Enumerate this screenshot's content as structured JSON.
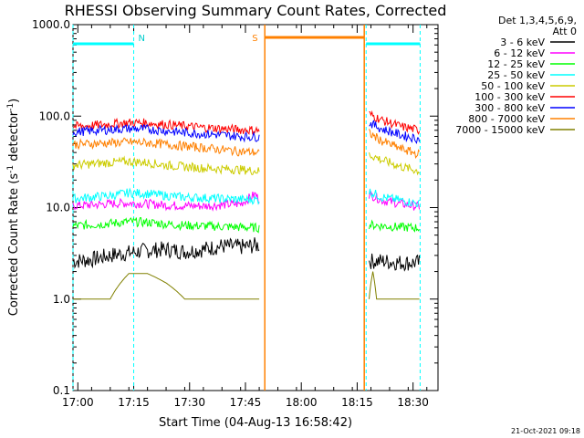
{
  "chart_data": {
    "type": "line",
    "title": "RHESSI Observing Summary Count Rates, Corrected",
    "xlabel": "Start Time (04-Aug-13 16:58:42)",
    "ylabel": "Corrected Count Rate (s",
    "ylabel_sup": "-1",
    "ylabel_mid": " detector",
    "ylabel_sup2": "-1",
    "ylabel_end": ")",
    "xlim": [
      0,
      98
    ],
    "ylim": [
      0.1,
      1000
    ],
    "yscale": "log",
    "x_ticks": [
      {
        "t": 1.3,
        "label": "17:00"
      },
      {
        "t": 16.3,
        "label": "17:15"
      },
      {
        "t": 31.3,
        "label": "17:30"
      },
      {
        "t": 46.3,
        "label": "17:45"
      },
      {
        "t": 61.3,
        "label": "18:00"
      },
      {
        "t": 76.3,
        "label": "18:15"
      },
      {
        "t": 91.3,
        "label": "18:30"
      }
    ],
    "y_ticks": [
      {
        "v": 0.1,
        "label": "0.1"
      },
      {
        "v": 1,
        "label": "1.0"
      },
      {
        "v": 10,
        "label": "10.0"
      },
      {
        "v": 100,
        "label": "100.0"
      },
      {
        "v": 1000,
        "label": "1000.0"
      }
    ],
    "legend": {
      "header1": "Det 1,3,4,5,6,9,",
      "header2": "Att 0",
      "placement": "outside-right"
    },
    "segments": [
      [
        0,
        50
      ],
      [
        79.5,
        93
      ]
    ],
    "series": [
      {
        "name": "3 - 6 keV",
        "color": "#000000",
        "points": [
          [
            0,
            2.6
          ],
          [
            5,
            2.7
          ],
          [
            10,
            3.0
          ],
          [
            15,
            3.2
          ],
          [
            20,
            3.4
          ],
          [
            25,
            3.5
          ],
          [
            30,
            3.3
          ],
          [
            35,
            3.5
          ],
          [
            40,
            3.8
          ],
          [
            45,
            3.7
          ],
          [
            50,
            3.9
          ],
          [
            79.5,
            2.6
          ],
          [
            83,
            2.6
          ],
          [
            88,
            2.5
          ],
          [
            93,
            2.5
          ]
        ]
      },
      {
        "name": "6 - 12 keV",
        "color": "#ff00ff",
        "points": [
          [
            0,
            10.5
          ],
          [
            5,
            10.7
          ],
          [
            10,
            11.0
          ],
          [
            15,
            11.2
          ],
          [
            20,
            11.0
          ],
          [
            25,
            10.6
          ],
          [
            30,
            10.5
          ],
          [
            35,
            10.4
          ],
          [
            40,
            10.7
          ],
          [
            45,
            11.0
          ],
          [
            49,
            14.0
          ],
          [
            50,
            12.0
          ],
          [
            79.5,
            14.0
          ],
          [
            83,
            12.0
          ],
          [
            88,
            11.0
          ],
          [
            93,
            10.2
          ]
        ]
      },
      {
        "name": "12 - 25 keV",
        "color": "#00ff00",
        "points": [
          [
            0,
            6.3
          ],
          [
            5,
            6.5
          ],
          [
            10,
            6.7
          ],
          [
            15,
            7.0
          ],
          [
            20,
            6.9
          ],
          [
            25,
            6.6
          ],
          [
            30,
            6.4
          ],
          [
            35,
            6.3
          ],
          [
            40,
            6.2
          ],
          [
            45,
            6.1
          ],
          [
            50,
            6.0
          ],
          [
            79.5,
            6.5
          ],
          [
            83,
            6.3
          ],
          [
            88,
            6.1
          ],
          [
            93,
            6.0
          ]
        ]
      },
      {
        "name": "25 - 50 keV",
        "color": "#00ffff",
        "points": [
          [
            0,
            12.5
          ],
          [
            5,
            13.0
          ],
          [
            10,
            13.5
          ],
          [
            15,
            14.5
          ],
          [
            20,
            14.2
          ],
          [
            25,
            13.5
          ],
          [
            30,
            13.0
          ],
          [
            35,
            12.8
          ],
          [
            40,
            12.5
          ],
          [
            45,
            12.3
          ],
          [
            50,
            12.2
          ],
          [
            79.5,
            15.0
          ],
          [
            83,
            13.0
          ],
          [
            88,
            12.0
          ],
          [
            93,
            11.0
          ]
        ]
      },
      {
        "name": "50 - 100 keV",
        "color": "#cccc00",
        "points": [
          [
            0,
            29
          ],
          [
            5,
            30
          ],
          [
            10,
            31
          ],
          [
            15,
            32
          ],
          [
            20,
            31
          ],
          [
            25,
            29
          ],
          [
            30,
            28
          ],
          [
            35,
            27
          ],
          [
            40,
            26.5
          ],
          [
            45,
            26
          ],
          [
            50,
            25
          ],
          [
            79.5,
            38
          ],
          [
            83,
            33
          ],
          [
            88,
            28
          ],
          [
            93,
            25
          ]
        ]
      },
      {
        "name": "100 - 300 keV",
        "color": "#ff0000",
        "points": [
          [
            0,
            77
          ],
          [
            5,
            79
          ],
          [
            10,
            82
          ],
          [
            15,
            85
          ],
          [
            20,
            84
          ],
          [
            25,
            81
          ],
          [
            30,
            78
          ],
          [
            35,
            75
          ],
          [
            40,
            73
          ],
          [
            45,
            71
          ],
          [
            50,
            70
          ],
          [
            79.5,
            105
          ],
          [
            83,
            90
          ],
          [
            88,
            77
          ],
          [
            93,
            70
          ]
        ]
      },
      {
        "name": "300 - 800 keV",
        "color": "#0000ff",
        "points": [
          [
            0,
            67
          ],
          [
            5,
            69
          ],
          [
            10,
            71
          ],
          [
            15,
            73
          ],
          [
            20,
            72
          ],
          [
            25,
            69
          ],
          [
            30,
            66
          ],
          [
            35,
            64
          ],
          [
            40,
            62
          ],
          [
            45,
            60
          ],
          [
            50,
            59
          ],
          [
            79.5,
            85
          ],
          [
            83,
            72
          ],
          [
            88,
            62
          ],
          [
            93,
            56
          ]
        ]
      },
      {
        "name": "800 - 7000 keV",
        "color": "#ff8000",
        "points": [
          [
            0,
            49
          ],
          [
            5,
            50
          ],
          [
            10,
            51
          ],
          [
            15,
            52
          ],
          [
            20,
            51
          ],
          [
            25,
            49
          ],
          [
            30,
            47
          ],
          [
            35,
            45
          ],
          [
            40,
            43
          ],
          [
            45,
            41
          ],
          [
            50,
            40
          ],
          [
            79.5,
            65
          ],
          [
            83,
            53
          ],
          [
            88,
            44
          ],
          [
            93,
            38
          ]
        ]
      },
      {
        "name": "7000 - 15000 keV",
        "color": "#808000",
        "points": [
          [
            0,
            1.0
          ],
          [
            10,
            1.0
          ],
          [
            15,
            1.9
          ],
          [
            20,
            1.9
          ],
          [
            25,
            1.5
          ],
          [
            30,
            1.0
          ],
          [
            40,
            1.0
          ],
          [
            50,
            1.0
          ],
          [
            79.5,
            1.0
          ],
          [
            80.5,
            2.0
          ],
          [
            81.5,
            1.0
          ],
          [
            93,
            1.0
          ]
        ]
      }
    ],
    "annotations": [
      {
        "label": "N",
        "t": 16.3,
        "color": "#00cccc",
        "kind": "night"
      },
      {
        "label": "S",
        "t": 51.5,
        "color": "#ff8000",
        "kind": "saa"
      }
    ],
    "flags": {
      "night_color": "#00ffff",
      "saa_color": "#ff8000",
      "night_bars": [
        [
          0,
          16.3
        ],
        [
          78.7,
          93.2
        ]
      ],
      "saa_bar": [
        51.5,
        78.2
      ],
      "night_lines": [
        0,
        16.3,
        78.7,
        93.2
      ],
      "saa_lines": [
        51.5,
        78.2
      ]
    },
    "footer": "21-Oct-2021 09:18"
  }
}
